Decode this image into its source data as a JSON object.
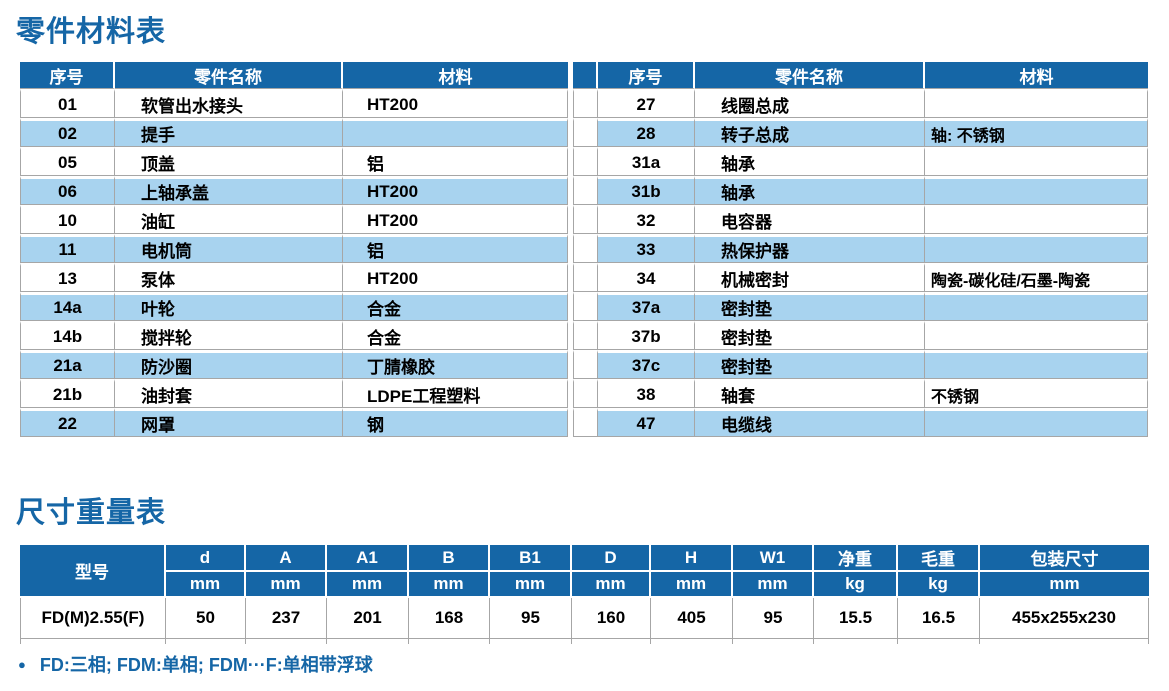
{
  "titles": {
    "parts": "零件材料表",
    "dimensions": "尺寸重量表"
  },
  "colors": {
    "header_bg": "#1566a6",
    "stripe": "#a8d3ef",
    "border": "#a6a6a6",
    "title_blue": "#1566a6"
  },
  "parts_table": {
    "headers": {
      "no": "序号",
      "name": "零件名称",
      "material": "材料"
    },
    "left_rows": [
      {
        "no": "01",
        "name": "软管出水接头",
        "material": "HT200"
      },
      {
        "no": "02",
        "name": "提手",
        "material": ""
      },
      {
        "no": "05",
        "name": "顶盖",
        "material": "铝"
      },
      {
        "no": "06",
        "name": "上轴承盖",
        "material": "HT200"
      },
      {
        "no": "10",
        "name": "油缸",
        "material": "HT200"
      },
      {
        "no": "11",
        "name": "电机筒",
        "material": "铝"
      },
      {
        "no": "13",
        "name": "泵体",
        "material": "HT200"
      },
      {
        "no": "14a",
        "name": "叶轮",
        "material": "合金"
      },
      {
        "no": "14b",
        "name": "搅拌轮",
        "material": "合金"
      },
      {
        "no": "21a",
        "name": "防沙圈",
        "material": "丁腈橡胶"
      },
      {
        "no": "21b",
        "name": "油封套",
        "material": "LDPE工程塑料"
      },
      {
        "no": "22",
        "name": "网罩",
        "material": "钢"
      }
    ],
    "right_rows": [
      {
        "no": "27",
        "name": "线圈总成",
        "material": ""
      },
      {
        "no": "28",
        "name": "转子总成",
        "material": "轴: 不锈钢"
      },
      {
        "no": "31a",
        "name": "轴承",
        "material": ""
      },
      {
        "no": "31b",
        "name": "轴承",
        "material": ""
      },
      {
        "no": "32",
        "name": "电容器",
        "material": ""
      },
      {
        "no": "33",
        "name": "热保护器",
        "material": ""
      },
      {
        "no": "34",
        "name": "机械密封",
        "material": "陶瓷-碳化硅/石墨-陶瓷"
      },
      {
        "no": "37a",
        "name": "密封垫",
        "material": ""
      },
      {
        "no": "37b",
        "name": "密封垫",
        "material": ""
      },
      {
        "no": "37c",
        "name": "密封垫",
        "material": ""
      },
      {
        "no": "38",
        "name": "轴套",
        "material": "不锈钢"
      },
      {
        "no": "47",
        "name": "电缆线",
        "material": ""
      }
    ]
  },
  "dimension_table": {
    "model_header": "型号",
    "columns": [
      {
        "label": "d",
        "unit": "mm"
      },
      {
        "label": "A",
        "unit": "mm"
      },
      {
        "label": "A1",
        "unit": "mm"
      },
      {
        "label": "B",
        "unit": "mm"
      },
      {
        "label": "B1",
        "unit": "mm"
      },
      {
        "label": "D",
        "unit": "mm"
      },
      {
        "label": "H",
        "unit": "mm"
      },
      {
        "label": "W1",
        "unit": "mm"
      },
      {
        "label": "净重",
        "unit": "kg"
      },
      {
        "label": "毛重",
        "unit": "kg"
      },
      {
        "label": "包装尺寸",
        "unit": "mm"
      }
    ],
    "rows": [
      {
        "model": "FD(M)2.55(F)",
        "values": [
          "50",
          "237",
          "201",
          "168",
          "95",
          "160",
          "405",
          "95",
          "15.5",
          "16.5",
          "455x255x230"
        ]
      }
    ]
  },
  "footnote": {
    "bullet": "●",
    "text": "FD:三相; FDM:单相; FDM···F:单相带浮球"
  }
}
